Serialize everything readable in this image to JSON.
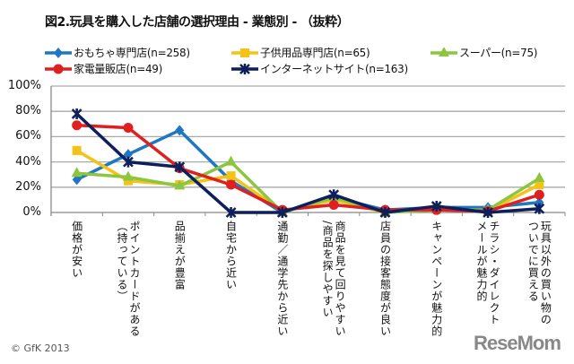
{
  "chart_data": {
    "type": "line",
    "title": "図2.玩具を購入した店舗の選択理由 - 業態別 - （抜粋）",
    "xlabel": "",
    "ylabel": "",
    "ylim": [
      0,
      100
    ],
    "yticks": [
      "0%",
      "20%",
      "40%",
      "60%",
      "80%",
      "100%"
    ],
    "grid": true,
    "legend_placement": "top",
    "categories": [
      "価格が安い",
      "ポイントカードがある\n（持っている）",
      "品揃えが豊富",
      "自宅から近い",
      "通勤／通学先から近い",
      "商品を見て回りやすい\n/商品を探しやすい",
      "店員の接客態度が良い",
      "キャンペーンが魅力的",
      "チラシ・ダイレクト\nメールが魅力的",
      "玩具以外の買い物の\nついでに買える"
    ],
    "series": [
      {
        "name": "おもちゃ専門店(n=258)",
        "color": "#1f77c4",
        "marker": "diamond",
        "values": [
          26,
          46,
          65,
          25,
          0,
          12,
          2,
          4,
          4,
          8
        ]
      },
      {
        "name": "子供用品専門店(n=65)",
        "color": "#f5c218",
        "marker": "square",
        "values": [
          49,
          25,
          22,
          29,
          1,
          10,
          0,
          3,
          1,
          22
        ]
      },
      {
        "name": "スーパー(n=75)",
        "color": "#8cc63f",
        "marker": "triangle",
        "values": [
          31,
          28,
          21,
          40,
          0,
          12,
          0,
          2,
          2,
          27
        ]
      },
      {
        "name": "家電量販店(n=49)",
        "color": "#e02020",
        "marker": "circle",
        "values": [
          69,
          67,
          35,
          22,
          2,
          6,
          2,
          2,
          1,
          14
        ]
      },
      {
        "name": "インターネットサイト(n=163)",
        "color": "#0d1f5c",
        "marker": "x",
        "values": [
          78,
          40,
          36,
          0,
          0,
          14,
          0,
          5,
          0,
          3
        ]
      }
    ]
  },
  "footer": {
    "copyright": "© GfK 2013",
    "logo": "ReseMom"
  }
}
